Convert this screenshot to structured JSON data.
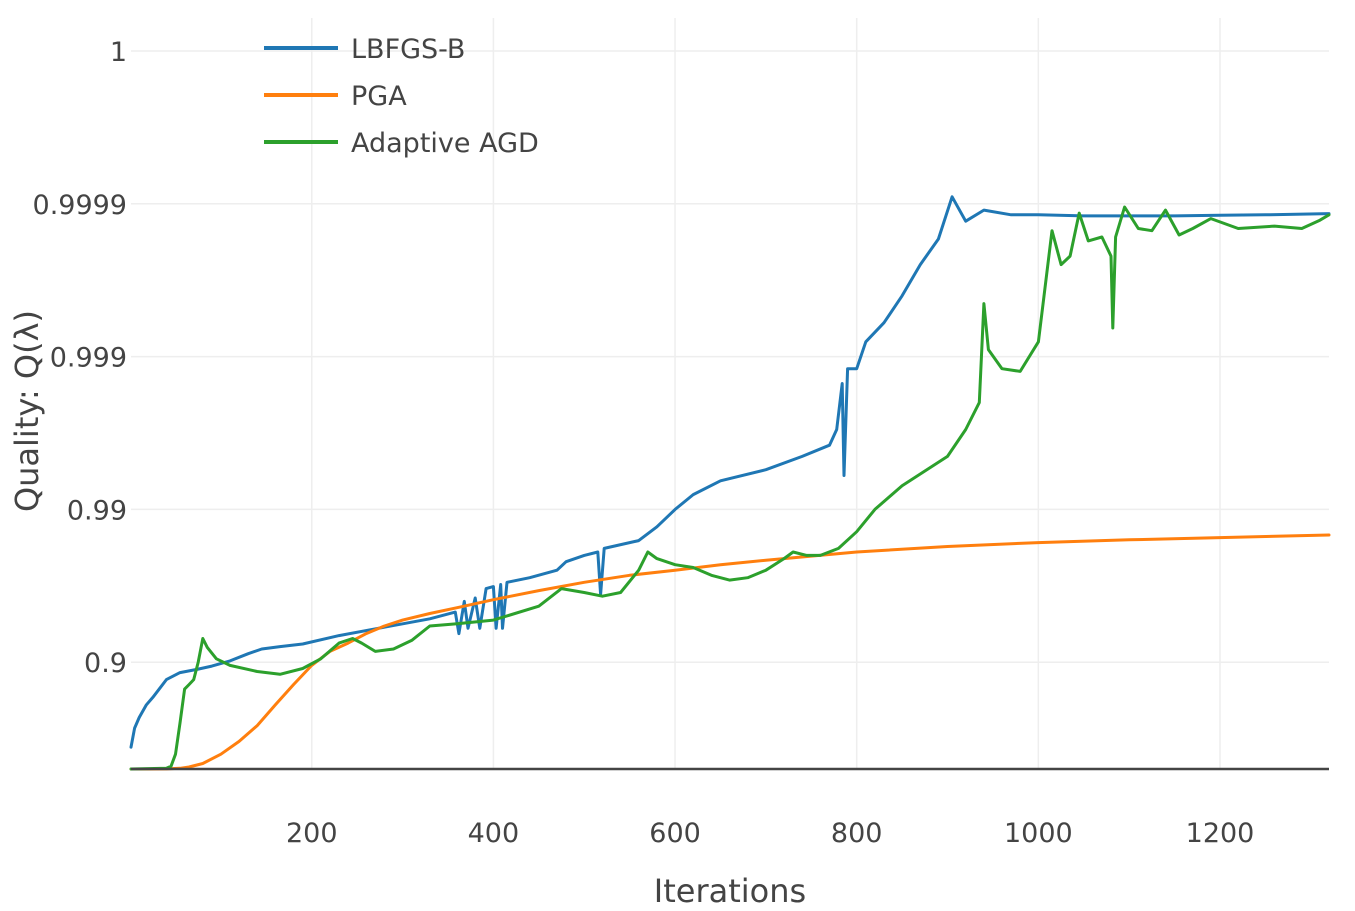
{
  "chart_data": {
    "type": "line",
    "title": "",
    "xlabel": "Iterations",
    "ylabel": "Quality: Q(λ)",
    "xlim": [
      1,
      1320
    ],
    "y_scale": "log(1 - Q)",
    "ylim": [
      0.5,
      0.99999
    ],
    "x_ticks": [
      {
        "value": 200,
        "label": "200"
      },
      {
        "value": 400,
        "label": "400"
      },
      {
        "value": 600,
        "label": "600"
      },
      {
        "value": 800,
        "label": "800"
      },
      {
        "value": 1000,
        "label": "1000"
      },
      {
        "value": 1200,
        "label": "1200"
      }
    ],
    "y_ticks": [
      {
        "value": 0.9,
        "label": "0.9"
      },
      {
        "value": 0.99,
        "label": "0.99"
      },
      {
        "value": 0.999,
        "label": "0.999"
      },
      {
        "value": 0.9999,
        "label": "0.9999"
      },
      {
        "value": 0.99999,
        "label": "1"
      }
    ],
    "legend_position": "top-left",
    "series": [
      {
        "name": "LBFGS-B",
        "color": "#1f77b4",
        "points": [
          [
            1,
            0.64
          ],
          [
            5,
            0.73
          ],
          [
            10,
            0.77
          ],
          [
            18,
            0.81
          ],
          [
            25,
            0.83
          ],
          [
            32,
            0.85
          ],
          [
            40,
            0.87
          ],
          [
            55,
            0.883
          ],
          [
            75,
            0.889
          ],
          [
            90,
            0.894
          ],
          [
            110,
            0.902
          ],
          [
            130,
            0.912
          ],
          [
            145,
            0.918
          ],
          [
            165,
            0.921
          ],
          [
            190,
            0.924
          ],
          [
            230,
            0.933
          ],
          [
            280,
            0.941
          ],
          [
            330,
            0.948
          ],
          [
            358,
            0.953
          ],
          [
            362,
            0.935
          ],
          [
            368,
            0.96
          ],
          [
            372,
            0.94
          ],
          [
            380,
            0.962
          ],
          [
            385,
            0.94
          ],
          [
            392,
            0.967
          ],
          [
            400,
            0.968
          ],
          [
            403,
            0.94
          ],
          [
            408,
            0.969
          ],
          [
            410,
            0.94
          ],
          [
            415,
            0.97
          ],
          [
            440,
            0.972
          ],
          [
            470,
            0.975
          ],
          [
            480,
            0.978
          ],
          [
            500,
            0.98
          ],
          [
            515,
            0.981
          ],
          [
            518,
            0.964
          ],
          [
            522,
            0.982
          ],
          [
            560,
            0.984
          ],
          [
            580,
            0.987
          ],
          [
            600,
            0.99
          ],
          [
            620,
            0.992
          ],
          [
            650,
            0.9935
          ],
          [
            700,
            0.9945
          ],
          [
            740,
            0.9955
          ],
          [
            770,
            0.9962
          ],
          [
            778,
            0.997
          ],
          [
            784,
            0.9985
          ],
          [
            786,
            0.994
          ],
          [
            790,
            0.9988
          ],
          [
            800,
            0.9988
          ],
          [
            810,
            0.9992
          ],
          [
            830,
            0.9994
          ],
          [
            850,
            0.9996
          ],
          [
            870,
            0.99975
          ],
          [
            890,
            0.99983
          ],
          [
            905,
            0.99991
          ],
          [
            920,
            0.99987
          ],
          [
            940,
            0.99989
          ],
          [
            970,
            0.999882
          ],
          [
            1000,
            0.999882
          ],
          [
            1050,
            0.99988
          ],
          [
            1100,
            0.99988
          ],
          [
            1150,
            0.99988
          ],
          [
            1200,
            0.999881
          ],
          [
            1250,
            0.999882
          ],
          [
            1320,
            0.999884
          ]
        ]
      },
      {
        "name": "PGA",
        "color": "#ff7f0e",
        "points": [
          [
            1,
            0.5
          ],
          [
            20,
            0.5
          ],
          [
            40,
            0.501
          ],
          [
            55,
            0.505
          ],
          [
            65,
            0.515
          ],
          [
            80,
            0.54
          ],
          [
            100,
            0.6
          ],
          [
            120,
            0.67
          ],
          [
            140,
            0.74
          ],
          [
            160,
            0.81
          ],
          [
            180,
            0.86
          ],
          [
            200,
            0.895
          ],
          [
            220,
            0.915
          ],
          [
            240,
            0.925
          ],
          [
            260,
            0.935
          ],
          [
            280,
            0.942
          ],
          [
            300,
            0.947
          ],
          [
            330,
            0.952
          ],
          [
            360,
            0.956
          ],
          [
            400,
            0.961
          ],
          [
            450,
            0.966
          ],
          [
            500,
            0.97
          ],
          [
            550,
            0.973
          ],
          [
            600,
            0.975
          ],
          [
            650,
            0.977
          ],
          [
            700,
            0.9785
          ],
          [
            800,
            0.981
          ],
          [
            900,
            0.9825
          ],
          [
            1000,
            0.9835
          ],
          [
            1100,
            0.9842
          ],
          [
            1200,
            0.9847
          ],
          [
            1320,
            0.9853
          ]
        ]
      },
      {
        "name": "Adaptive AGD",
        "color": "#2ca02c",
        "points": [
          [
            1,
            0.5
          ],
          [
            40,
            0.505
          ],
          [
            45,
            0.52
          ],
          [
            50,
            0.6
          ],
          [
            55,
            0.75
          ],
          [
            60,
            0.85
          ],
          [
            65,
            0.86
          ],
          [
            70,
            0.87
          ],
          [
            75,
            0.9
          ],
          [
            80,
            0.93
          ],
          [
            85,
            0.92
          ],
          [
            95,
            0.905
          ],
          [
            110,
            0.895
          ],
          [
            140,
            0.885
          ],
          [
            165,
            0.88
          ],
          [
            190,
            0.89
          ],
          [
            210,
            0.905
          ],
          [
            230,
            0.925
          ],
          [
            245,
            0.93
          ],
          [
            255,
            0.925
          ],
          [
            270,
            0.915
          ],
          [
            290,
            0.918
          ],
          [
            310,
            0.928
          ],
          [
            330,
            0.942
          ],
          [
            360,
            0.944
          ],
          [
            400,
            0.947
          ],
          [
            450,
            0.957
          ],
          [
            475,
            0.967
          ],
          [
            500,
            0.965
          ],
          [
            520,
            0.963
          ],
          [
            540,
            0.965
          ],
          [
            560,
            0.975
          ],
          [
            570,
            0.981
          ],
          [
            580,
            0.979
          ],
          [
            600,
            0.977
          ],
          [
            620,
            0.976
          ],
          [
            640,
            0.973
          ],
          [
            660,
            0.971
          ],
          [
            680,
            0.972
          ],
          [
            700,
            0.975
          ],
          [
            720,
            0.979
          ],
          [
            730,
            0.981
          ],
          [
            745,
            0.98
          ],
          [
            760,
            0.98
          ],
          [
            780,
            0.982
          ],
          [
            800,
            0.986
          ],
          [
            820,
            0.99
          ],
          [
            850,
            0.993
          ],
          [
            900,
            0.9955
          ],
          [
            920,
            0.997
          ],
          [
            935,
            0.998
          ],
          [
            940,
            0.99955
          ],
          [
            945,
            0.9991
          ],
          [
            960,
            0.9988
          ],
          [
            980,
            0.99875
          ],
          [
            1000,
            0.9992
          ],
          [
            1015,
            0.99985
          ],
          [
            1025,
            0.99975
          ],
          [
            1035,
            0.99978
          ],
          [
            1045,
            0.999885
          ],
          [
            1055,
            0.999825
          ],
          [
            1070,
            0.999835
          ],
          [
            1080,
            0.99978
          ],
          [
            1082,
            0.99935
          ],
          [
            1085,
            0.999835
          ],
          [
            1095,
            0.999895
          ],
          [
            1110,
            0.999855
          ],
          [
            1125,
            0.99985
          ],
          [
            1140,
            0.99989
          ],
          [
            1155,
            0.99984
          ],
          [
            1170,
            0.999855
          ],
          [
            1190,
            0.999875
          ],
          [
            1220,
            0.999855
          ],
          [
            1260,
            0.99986
          ],
          [
            1290,
            0.999855
          ],
          [
            1310,
            0.999872
          ],
          [
            1320,
            0.999882
          ]
        ]
      }
    ]
  }
}
